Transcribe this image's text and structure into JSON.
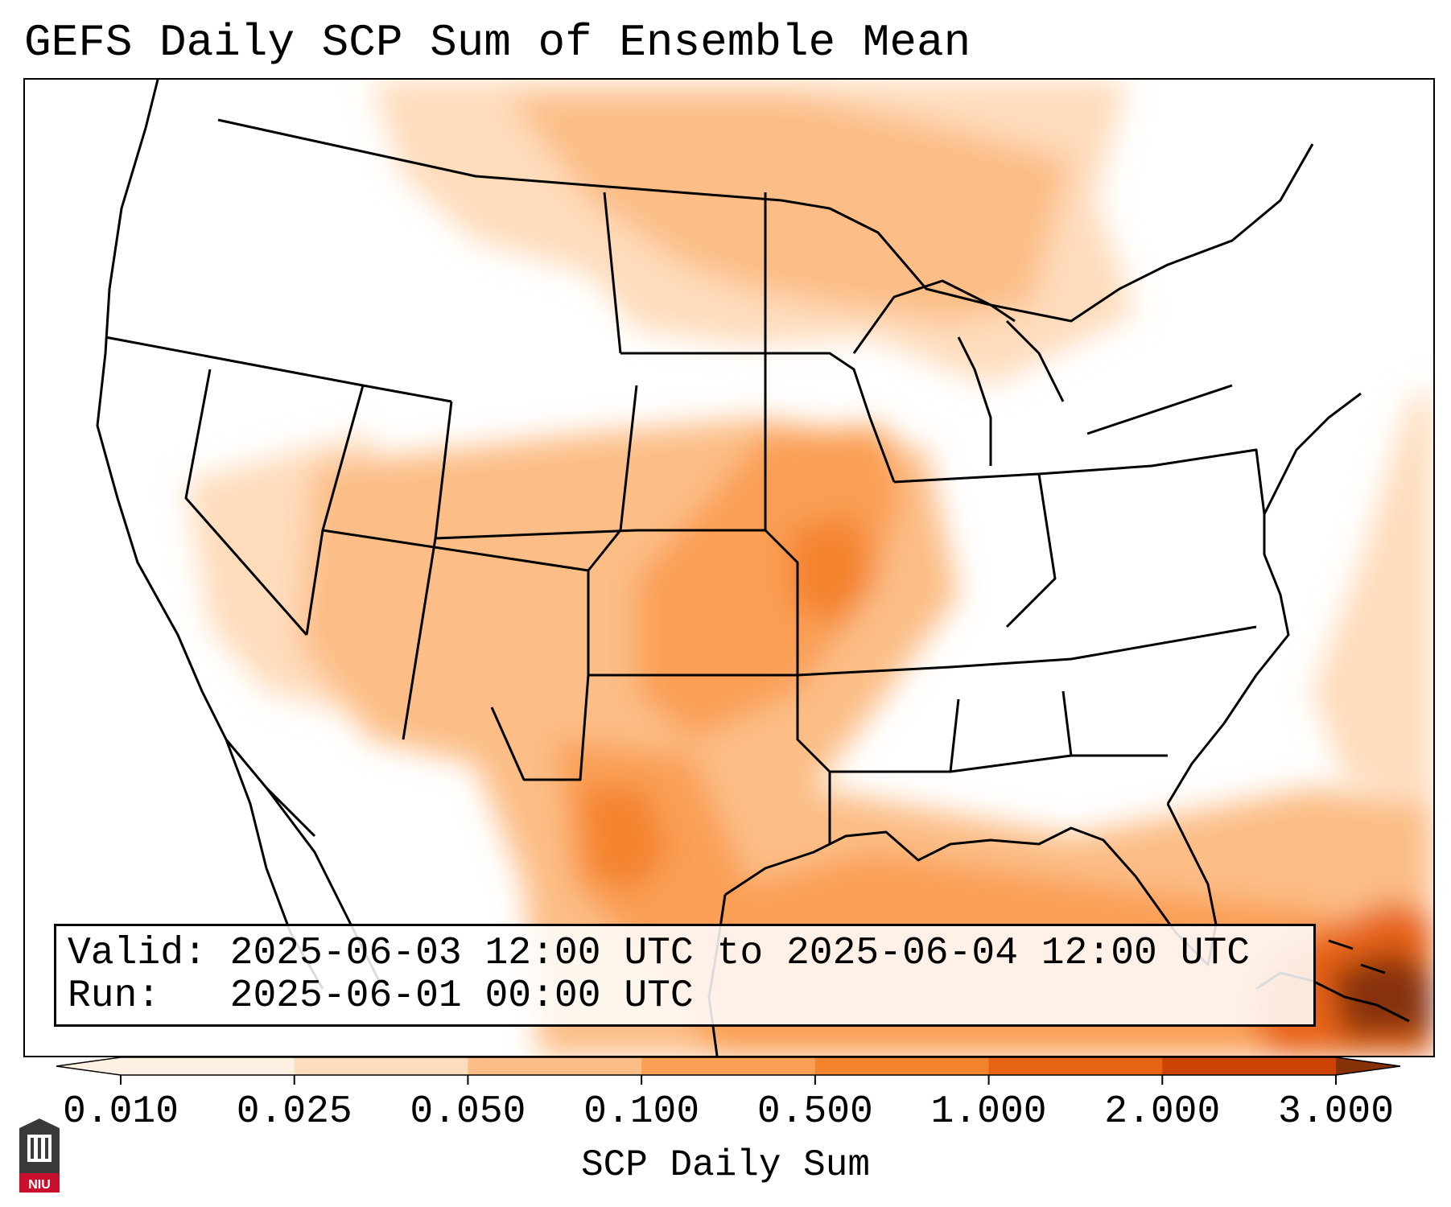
{
  "title": "GEFS Daily SCP Sum of Ensemble Mean",
  "valid": {
    "label": "Valid:",
    "text": "2025-06-03 12:00 UTC to 2025-06-04 12:00 UTC"
  },
  "run": {
    "label": "Run:",
    "text": "2025-06-01 00:00 UTC"
  },
  "colorbar": {
    "label": "SCP Daily Sum",
    "ticks": [
      "0.010",
      "0.025",
      "0.050",
      "0.100",
      "0.500",
      "1.000",
      "2.000",
      "3.000"
    ],
    "colors": [
      "#fff0e4",
      "#fedcbc",
      "#fcbd86",
      "#fa9f54",
      "#f4832e",
      "#e86415",
      "#cc4404",
      "#873108"
    ],
    "extend": "both"
  },
  "logo": {
    "text": "NIU"
  },
  "map": {
    "projection": "lambert-conformal",
    "region": "CONUS",
    "overlay": "state-and-coastline-outlines"
  }
}
